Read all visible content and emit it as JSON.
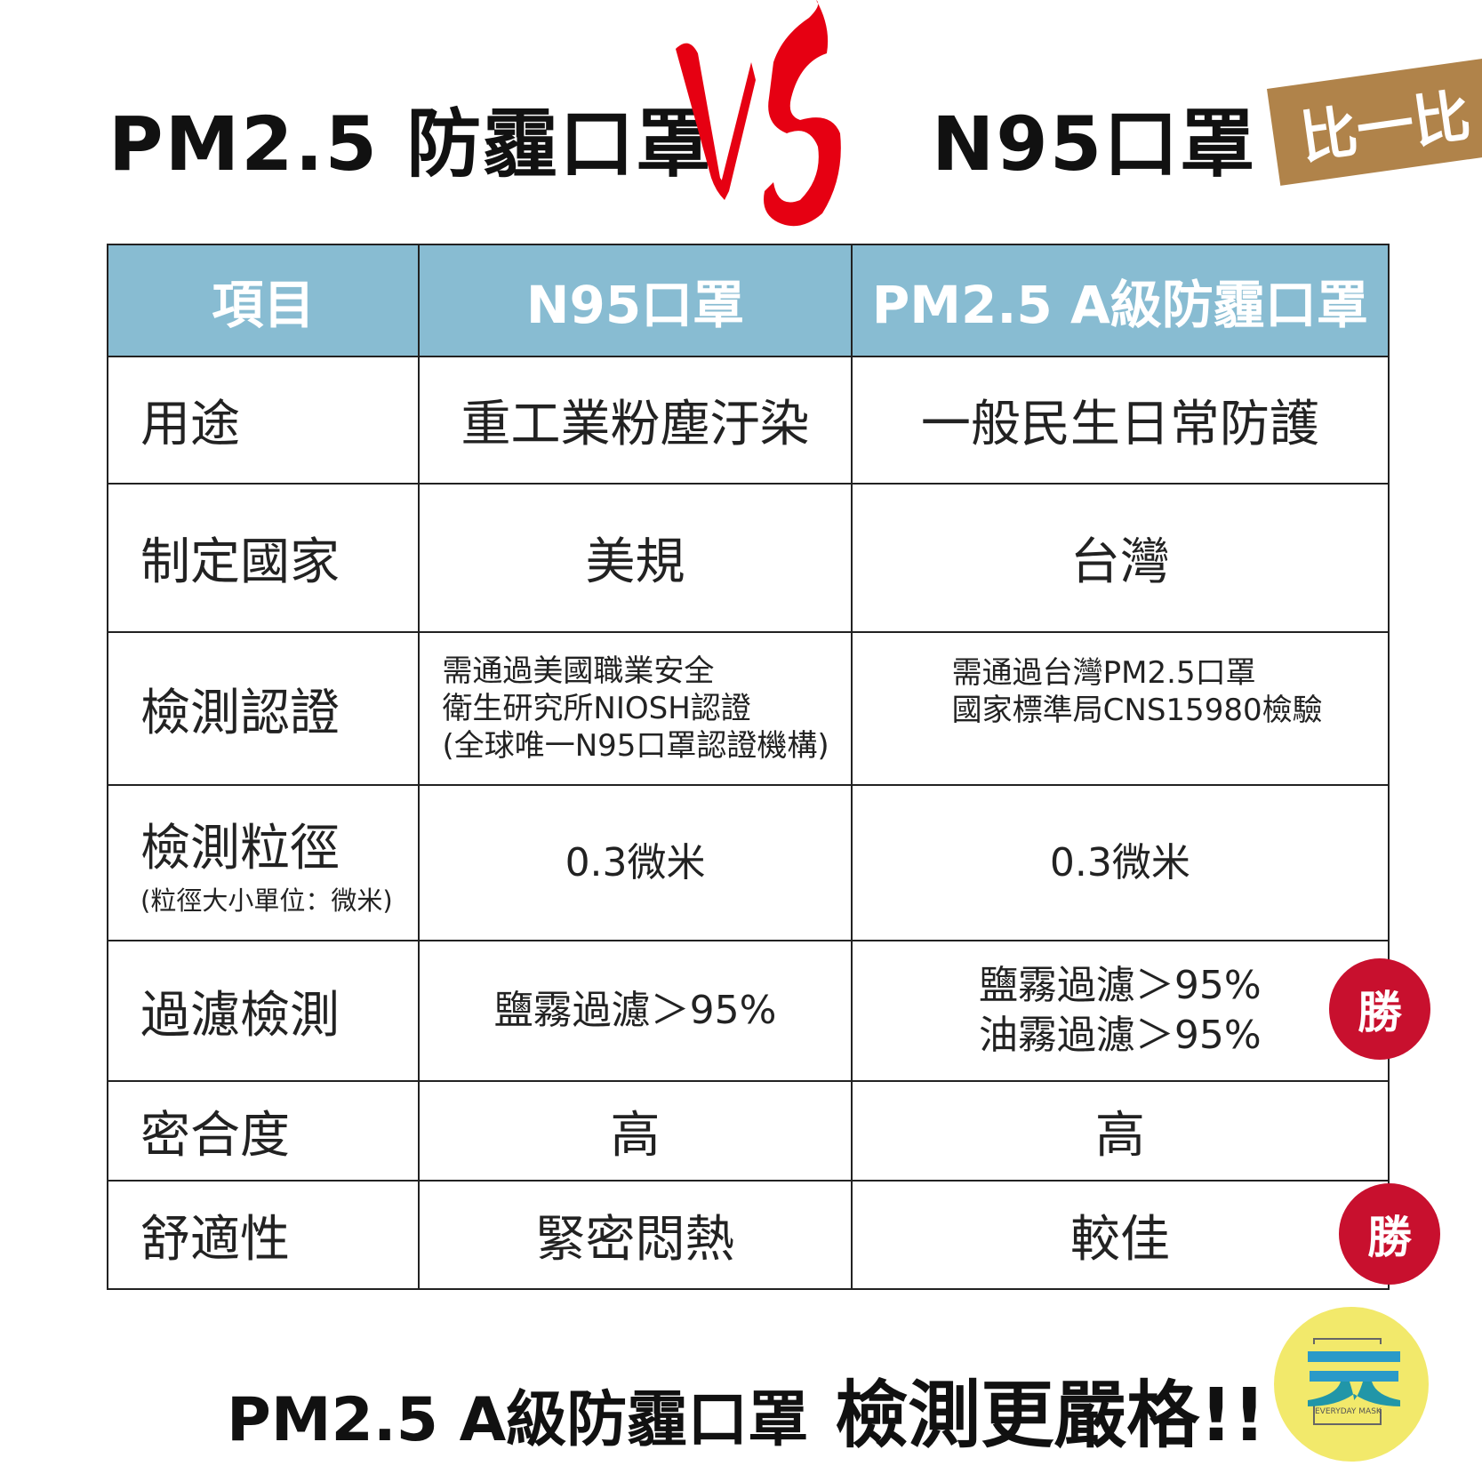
{
  "header": {
    "left_title": "PM2.5 防霾口罩",
    "vs": "VS",
    "right_title": "N95口罩",
    "tag": "比一比"
  },
  "table": {
    "columns": [
      "項目",
      "N95口罩",
      "PM2.5 A級防霾口罩"
    ],
    "rows": [
      {
        "label": "用途",
        "n95": "重工業粉塵汙染",
        "pm25": "一般民生日常防護"
      },
      {
        "label": "制定國家",
        "n95": "美規",
        "pm25": "台灣"
      },
      {
        "label": "檢測認證",
        "n95_lines": [
          "需通過美國職業安全",
          "衛生研究所NIOSH認證",
          "(全球唯一N95口罩認證機構)"
        ],
        "pm25_lines": [
          "需通過台灣PM2.5口罩",
          "國家標準局CNS15980檢驗"
        ]
      },
      {
        "label": "檢測粒徑",
        "sublabel": "(粒徑大小單位：微米)",
        "n95": "0.3微米",
        "pm25": "0.3微米"
      },
      {
        "label": "過濾檢測",
        "n95": "鹽霧過濾＞95%",
        "pm25_lines": [
          "鹽霧過濾＞95%",
          "油霧過濾＞95%"
        ],
        "badge": "勝"
      },
      {
        "label": "密合度",
        "n95": "高",
        "pm25": "高"
      },
      {
        "label": "舒適性",
        "n95": "緊密悶熱",
        "pm25": "較佳",
        "badge": "勝"
      }
    ]
  },
  "footer": {
    "left": "PM2.5 A級防霾口罩",
    "right": "檢測更嚴格!!"
  },
  "logo": {
    "text": "EVERYDAY MASK"
  },
  "colors": {
    "header_bg": "#88bcd2",
    "vs_red": "#e60012",
    "tag": "#b0834a",
    "badge": "#c8102e",
    "logo_bg": "#f2e96b",
    "logo_mark": "#2a9ac8"
  }
}
